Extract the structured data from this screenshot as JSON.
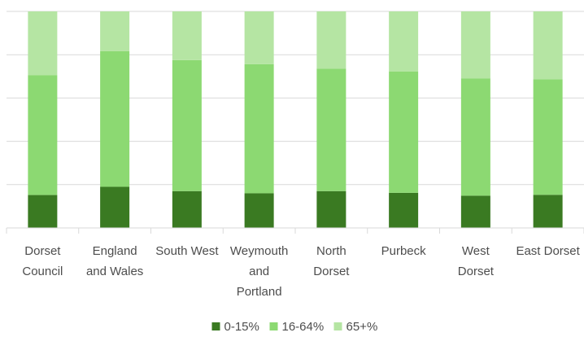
{
  "chart_data": {
    "type": "bar",
    "stacked": "percent",
    "categories": [
      [
        "Dorset",
        "Council"
      ],
      [
        "England",
        "and Wales"
      ],
      [
        "South West"
      ],
      [
        "Weymouth",
        "and",
        "Portland"
      ],
      [
        "North",
        "Dorset"
      ],
      [
        "Purbeck"
      ],
      [
        "West",
        "Dorset"
      ],
      [
        "East Dorset"
      ]
    ],
    "series": [
      {
        "name": "0-15%",
        "color": "#3a7a22",
        "values": [
          15.2,
          19.0,
          17.0,
          16.0,
          17.0,
          16.2,
          14.9,
          15.3
        ]
      },
      {
        "name": "16-64%",
        "color": "#8cd972",
        "values": [
          55.4,
          62.6,
          60.5,
          59.6,
          56.6,
          56.1,
          54.2,
          53.4
        ]
      },
      {
        "name": "65+%",
        "color": "#b5e5a3",
        "values": [
          29.4,
          18.4,
          22.5,
          24.4,
          26.4,
          27.7,
          30.9,
          31.3
        ]
      }
    ],
    "ylim": [
      0,
      100
    ],
    "grid": true,
    "legend": "bottom"
  }
}
